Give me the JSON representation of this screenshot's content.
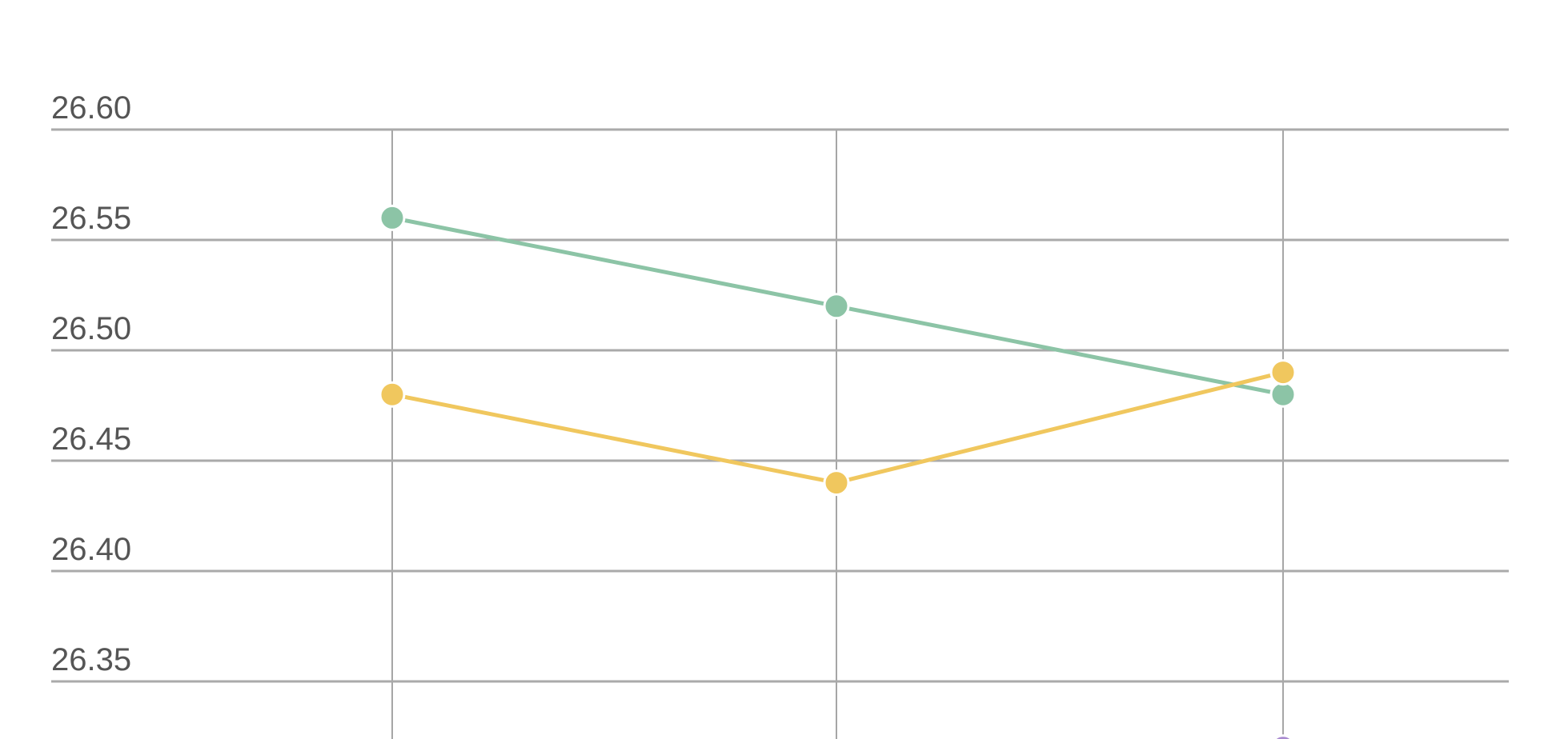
{
  "chart_data": {
    "type": "line",
    "title": "",
    "xlabel": "",
    "ylabel": "",
    "ylim": [
      26.3,
      26.6
    ],
    "y_ticks": [
      "26.60",
      "26.55",
      "26.50",
      "26.45",
      "26.40",
      "26.35"
    ],
    "x": [
      1,
      2,
      3
    ],
    "grid": true,
    "series": [
      {
        "color": "#8cc4a6",
        "values": [
          26.56,
          26.52,
          26.48
        ]
      },
      {
        "color": "#f0c75e",
        "values": [
          26.48,
          26.44,
          26.49
        ]
      },
      {
        "color": "#a98bd0",
        "values": [
          null,
          null,
          26.32
        ]
      }
    ]
  }
}
